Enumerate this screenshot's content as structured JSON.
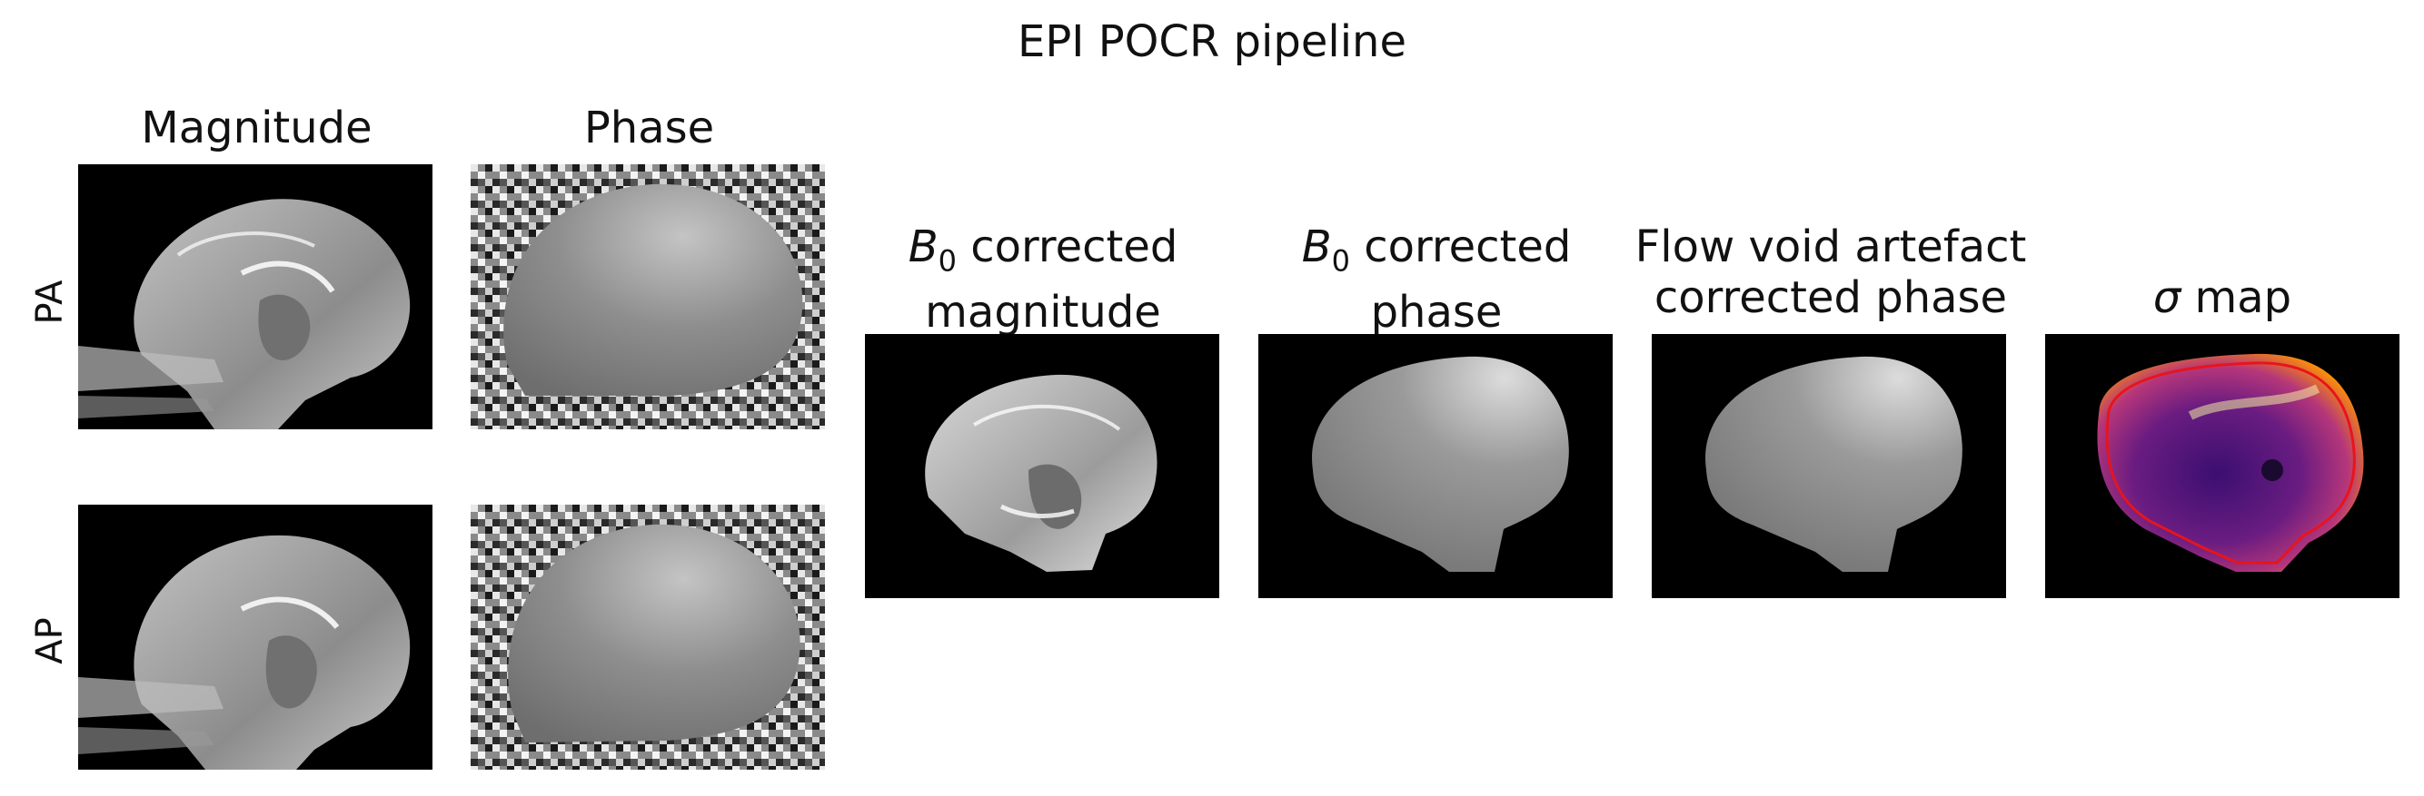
{
  "figure": {
    "title": "EPI POCR pipeline",
    "input_columns": [
      "Magnitude",
      "Phase"
    ],
    "row_labels": [
      "PA",
      "AP"
    ],
    "output_columns": [
      {
        "italic": "B",
        "sub": "0",
        "line1_rest": " corrected",
        "line2": "magnitude"
      },
      {
        "italic": "B",
        "sub": "0",
        "line1_rest": " corrected",
        "line2": "phase"
      },
      {
        "line1": "Flow void artefact",
        "line2": "corrected phase"
      },
      {
        "italic": "σ",
        "line1_rest": " map"
      }
    ]
  },
  "panels": {
    "pa_magnitude": "mri-magnitude-image",
    "pa_phase": "mri-phase-image",
    "ap_magnitude": "mri-magnitude-image",
    "ap_phase": "mri-phase-image",
    "b0_magnitude": "brain-masked-magnitude-image",
    "b0_phase": "brain-masked-phase-image",
    "flow_void_phase": "brain-masked-phase-image",
    "sigma_map": "sigma-heatmap-image"
  },
  "colors": {
    "background": "#000000",
    "sigma_low": "#2a0a4a",
    "sigma_high": "#fcffa4",
    "contour": "#e8141c"
  }
}
